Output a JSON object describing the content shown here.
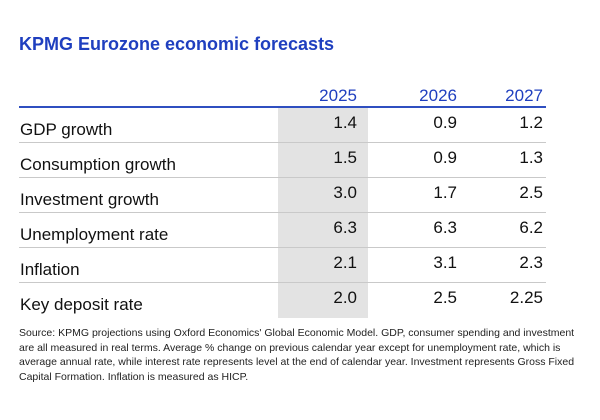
{
  "title": "KPMG Eurozone economic forecasts",
  "chart_data": {
    "type": "table",
    "columns": [
      "2025",
      "2026",
      "2027"
    ],
    "rows": [
      {
        "label": "GDP growth",
        "values": [
          "1.4",
          "0.9",
          "1.2"
        ]
      },
      {
        "label": "Consumption growth",
        "values": [
          "1.5",
          "0.9",
          "1.3"
        ]
      },
      {
        "label": "Investment growth",
        "values": [
          "3.0",
          "1.7",
          "2.5"
        ]
      },
      {
        "label": "Unemployment rate",
        "values": [
          "6.3",
          "6.3",
          "6.2"
        ]
      },
      {
        "label": "Inflation",
        "values": [
          "2.1",
          "3.1",
          "2.3"
        ]
      },
      {
        "label": "Key deposit rate",
        "values": [
          "2.0",
          "2.5",
          "2.25"
        ]
      }
    ],
    "highlighted_column": "2025"
  },
  "source": "Source: KPMG projections using Oxford Economics' Global Economic Model. GDP, consumer spending and investment are all measured in real terms. Average % change on previous calendar year except for unemployment rate, which is average annual rate, while interest rate represents level at the end of calendar year. Investment represents Gross Fixed Capital Formation. Inflation is measured as HICP.",
  "colors": {
    "title": "#1f3fbf",
    "header_line": "#2f4fc0",
    "highlight": "#e3e3e3",
    "row_separator": "#c9c9c9"
  }
}
